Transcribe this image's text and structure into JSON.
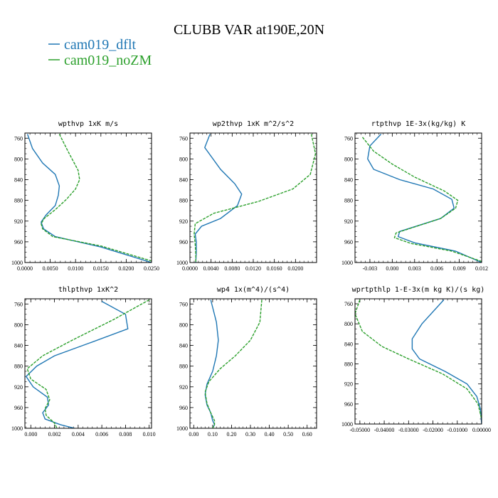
{
  "figure_title": "CLUBB VAR at190E,20N",
  "legend": [
    {
      "name": "cam019_dflt",
      "color": "#1f77b4"
    },
    {
      "name": "cam019_noZM",
      "color": "#2ca02c"
    }
  ],
  "chart_data": [
    {
      "type": "line",
      "title": "wpthvp   1xK m/s",
      "xlim": [
        0.0,
        0.025
      ],
      "ylim": [
        1000,
        750
      ],
      "xticks": [
        0.0,
        0.005,
        0.01,
        0.015,
        0.02,
        0.025
      ],
      "xticklabels": [
        "0.0000",
        "0.0050",
        "0.0100",
        "0.0150",
        "0.0200",
        "0.0250"
      ],
      "yticks": [
        760,
        800,
        840,
        880,
        920,
        960,
        1000
      ],
      "series": [
        {
          "name": "cam019_dflt",
          "x": [
            0.0005,
            0.0015,
            0.0035,
            0.006,
            0.0068,
            0.0066,
            0.006,
            0.0042,
            0.0032,
            0.0037,
            0.006,
            0.015,
            0.025
          ],
          "y": [
            752,
            780,
            808,
            830,
            852,
            870,
            890,
            908,
            922,
            935,
            950,
            970,
            1000
          ]
        },
        {
          "name": "cam019_noZM",
          "x": [
            0.0068,
            0.0085,
            0.0105,
            0.0108,
            0.01,
            0.0082,
            0.006,
            0.0038,
            0.0032,
            0.0035,
            0.0055,
            0.015,
            0.025
          ],
          "y": [
            752,
            785,
            822,
            840,
            858,
            878,
            898,
            915,
            925,
            935,
            950,
            968,
            997
          ]
        }
      ]
    },
    {
      "type": "line",
      "title": "wp2thvp   1xK m^2/s^2",
      "xlim": [
        0.0,
        0.024
      ],
      "ylim": [
        1000,
        750
      ],
      "xticks": [
        0.0,
        0.004,
        0.008,
        0.012,
        0.016,
        0.02
      ],
      "xticklabels": [
        "0.0000",
        "0.0040",
        "0.0080",
        "0.0120",
        "0.0160",
        "0.0200"
      ],
      "yticks": [
        760,
        800,
        840,
        880,
        920,
        960,
        1000
      ],
      "series": [
        {
          "name": "cam019_dflt",
          "x": [
            0.0038,
            0.0028,
            0.0058,
            0.0085,
            0.0098,
            0.009,
            0.0058,
            0.0022,
            0.001,
            0.0012,
            0.0012,
            0.0011
          ],
          "y": [
            752,
            778,
            820,
            848,
            868,
            890,
            915,
            930,
            945,
            960,
            980,
            1000
          ]
        },
        {
          "name": "cam019_noZM",
          "x": [
            0.023,
            0.0238,
            0.0228,
            0.0195,
            0.013,
            0.0045,
            0.001,
            0.0008,
            0.001,
            0.0011,
            0.0011
          ],
          "y": [
            752,
            790,
            830,
            858,
            882,
            905,
            925,
            945,
            965,
            985,
            1000
          ]
        }
      ]
    },
    {
      "type": "line",
      "title": "rtpthvp   1E-3x(kg/kg) K",
      "xlim": [
        -0.005,
        0.012
      ],
      "ylim": [
        1000,
        750
      ],
      "xticks": [
        -0.003,
        0.0,
        0.003,
        0.006,
        0.009,
        0.012
      ],
      "xticklabels": [
        "-0.003",
        "0.000",
        "0.003",
        "0.006",
        "0.009",
        "0.012"
      ],
      "yticks": [
        760,
        800,
        840,
        880,
        920,
        960,
        1000
      ],
      "series": [
        {
          "name": "cam019_dflt",
          "x": [
            -0.0015,
            -0.003,
            -0.0033,
            -0.0025,
            0.001,
            0.0055,
            0.008,
            0.0083,
            0.0065,
            0.001,
            0.0008,
            0.003,
            0.0085,
            0.012
          ],
          "y": [
            752,
            775,
            800,
            820,
            840,
            858,
            878,
            895,
            915,
            940,
            950,
            962,
            978,
            1000
          ]
        },
        {
          "name": "cam019_noZM",
          "x": [
            -0.004,
            -0.0025,
            0.0,
            0.003,
            0.007,
            0.0088,
            0.0085,
            0.0065,
            0.0005,
            0.0003,
            0.0025,
            0.008,
            0.012
          ],
          "y": [
            758,
            785,
            810,
            835,
            862,
            880,
            895,
            915,
            943,
            952,
            963,
            978,
            998
          ]
        }
      ]
    },
    {
      "type": "line",
      "title": "thlpthvp   1xK^2",
      "xlim": [
        -0.0005,
        0.0102
      ],
      "ylim": [
        1000,
        750
      ],
      "xticks": [
        0.0,
        0.002,
        0.004,
        0.006,
        0.008,
        0.01
      ],
      "xticklabels": [
        "0.000",
        "0.002",
        "0.004",
        "0.006",
        "0.008",
        "0.010"
      ],
      "yticks": [
        760,
        800,
        840,
        880,
        920,
        960,
        1000
      ],
      "series": [
        {
          "name": "cam019_dflt",
          "x": [
            0.006,
            0.008,
            0.0082,
            0.005,
            0.002,
            0.0005,
            -0.0004,
            0.0002,
            0.0014,
            0.0015,
            0.001,
            0.0012,
            0.0025,
            0.0037
          ],
          "y": [
            755,
            780,
            808,
            835,
            860,
            880,
            900,
            920,
            940,
            955,
            970,
            982,
            993,
            1000
          ]
        },
        {
          "name": "cam019_noZM",
          "x": [
            0.01,
            0.007,
            0.0035,
            0.001,
            -0.0003,
            0.0,
            0.0013,
            0.0016,
            0.0012,
            0.0013,
            0.002,
            0.0022
          ],
          "y": [
            752,
            790,
            830,
            860,
            885,
            905,
            925,
            945,
            962,
            975,
            990,
            1000
          ]
        }
      ]
    },
    {
      "type": "line",
      "title": "wp4   1x(m^4)/(s^4)",
      "xlim": [
        -0.02,
        0.65
      ],
      "ylim": [
        1000,
        750
      ],
      "xticks": [
        0.0,
        0.1,
        0.2,
        0.3,
        0.4,
        0.5,
        0.6
      ],
      "xticklabels": [
        "0.00",
        "0.10",
        "0.20",
        "0.30",
        "0.40",
        "0.50",
        "0.60"
      ],
      "yticks": [
        760,
        800,
        840,
        880,
        920,
        960,
        1000
      ],
      "series": [
        {
          "name": "cam019_dflt",
          "x": [
            0.09,
            0.12,
            0.13,
            0.12,
            0.1,
            0.07,
            0.06,
            0.07,
            0.09,
            0.1,
            0.11,
            0.1
          ],
          "y": [
            752,
            795,
            830,
            860,
            890,
            915,
            935,
            955,
            970,
            985,
            993,
            1000
          ]
        },
        {
          "name": "cam019_noZM",
          "x": [
            0.36,
            0.35,
            0.3,
            0.22,
            0.14,
            0.08,
            0.06,
            0.07,
            0.09,
            0.11,
            0.11,
            0.1
          ],
          "y": [
            752,
            795,
            830,
            860,
            885,
            910,
            930,
            952,
            970,
            985,
            993,
            1000
          ]
        }
      ]
    },
    {
      "type": "line",
      "title": "wprtpthlp   1-E-3x(m kg K)/(s kg)",
      "xlim": [
        -0.052,
        0.0
      ],
      "ylim": [
        1000,
        750
      ],
      "xticks": [
        -0.05,
        -0.04,
        -0.03,
        -0.02,
        -0.01,
        0.0
      ],
      "xticklabels": [
        "-0.05000",
        "-0.04000",
        "-0.03000",
        "-0.02000",
        "-0.01000",
        "0.00000"
      ],
      "yticks": [
        760,
        800,
        840,
        880,
        920,
        960,
        1000
      ],
      "series": [
        {
          "name": "cam019_dflt",
          "x": [
            -0.0155,
            -0.0245,
            -0.0285,
            -0.0285,
            -0.0255,
            -0.015,
            -0.006,
            -0.002,
            -0.0005,
            0.0
          ],
          "y": [
            752,
            800,
            830,
            850,
            870,
            895,
            920,
            945,
            970,
            1000
          ]
        },
        {
          "name": "cam019_noZM",
          "x": [
            -0.05,
            -0.052,
            -0.049,
            -0.041,
            -0.03,
            -0.016,
            -0.006,
            -0.0015,
            0.0
          ],
          "y": [
            752,
            780,
            815,
            845,
            870,
            900,
            930,
            960,
            990
          ]
        }
      ]
    }
  ]
}
